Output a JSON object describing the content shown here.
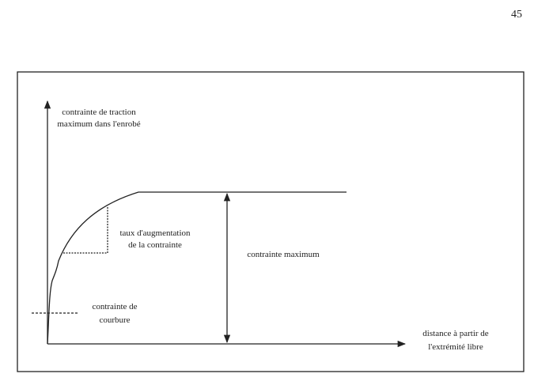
{
  "page_number": "45",
  "figure": {
    "y_axis_label": [
      "contrainte de traction",
      "maximum dans l'enrobé"
    ],
    "rate_label": [
      "taux d'augmentation",
      "de la contrainte"
    ],
    "max_label": [
      "contrainte maximum"
    ],
    "bending_label": [
      "contrainte de",
      "courbure"
    ],
    "x_axis_label": [
      "distance à partir de",
      "l'extrémité libre"
    ]
  }
}
